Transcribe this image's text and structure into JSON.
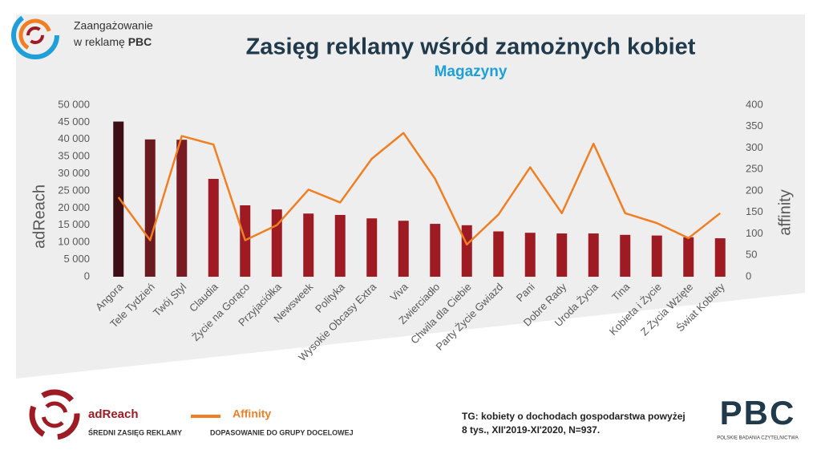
{
  "header": {
    "line1": "Zaangażowanie",
    "line2": "w reklamę ",
    "line2_bold": "PBC"
  },
  "logo": {
    "text": "PBC",
    "caption": "POLSKIE BADANIA CZYTELNICTWA"
  },
  "chart_data": {
    "type": "bar",
    "title": "Zasięg reklamy wśród zamożnych kobiet",
    "subtitle": "Magazyny",
    "ylabel": "adReach",
    "y2label": "affinity",
    "categories": [
      "Angora",
      "Tele Tydzień",
      "Twój Styl",
      "Claudia",
      "Życie na Gorąco",
      "Przyjaciółka",
      "Newsweek",
      "Polityka",
      "Wysokie Obcasy Extra",
      "Viva",
      "Zwierciadło",
      "Chwila dla Ciebie",
      "Party Życie Gwiazd",
      "Pani",
      "Dobre Rady",
      "Uroda Życia",
      "Tina",
      "Kobieta i Życie",
      "Z Życia Wzięte",
      "Świat Kobiety"
    ],
    "series": [
      {
        "name": "adReach",
        "type": "bar",
        "description": "ŚREDNI ZASIĘG REKLAMY",
        "color": "#9e1b24",
        "colors": [
          "#3d0f14",
          "#6b1a20",
          "#7a1a22",
          "#9e1b24",
          "#9e1b24",
          "#9e1b24",
          "#9e1b24",
          "#9e1b24",
          "#9e1b24",
          "#9e1b24",
          "#9e1b24",
          "#9e1b24",
          "#9e1b24",
          "#9e1b24",
          "#9e1b24",
          "#9e1b24",
          "#9e1b24",
          "#9e1b24",
          "#9e1b24",
          "#9e1b24"
        ],
        "values": [
          45200,
          40000,
          39900,
          28500,
          20800,
          19600,
          18400,
          18000,
          17000,
          16300,
          15400,
          15000,
          13200,
          12800,
          12600,
          12600,
          12200,
          12000,
          11500,
          11200
        ]
      },
      {
        "name": "Affinity",
        "type": "line",
        "axis": "y2",
        "description": "DOPASOWANIE  DO GRUPY DOCELOWEJ",
        "color": "#f07f23",
        "values": [
          185,
          85,
          328,
          308,
          85,
          120,
          203,
          173,
          275,
          335,
          228,
          75,
          145,
          255,
          148,
          310,
          148,
          125,
          90,
          148
        ]
      }
    ],
    "ylim": [
      0,
      50000
    ],
    "yticks": [
      0,
      {
        "value": 5000,
        "label": "5 000"
      },
      {
        "value": 10000,
        "label": "10 000"
      },
      {
        "value": 15000,
        "label": "15 000"
      },
      {
        "value": 20000,
        "label": "20 000"
      },
      {
        "value": 25000,
        "label": "25 000"
      },
      {
        "value": 30000,
        "label": "30 000"
      },
      {
        "value": 35000,
        "label": "35 000"
      },
      {
        "value": 40000,
        "label": "40 000"
      },
      {
        "value": 45000,
        "label": "45 000"
      },
      {
        "value": 50000,
        "label": "50 000"
      }
    ],
    "y2lim": [
      0,
      400
    ],
    "y2ticks": [
      0,
      50,
      100,
      150,
      200,
      250,
      300,
      350,
      400
    ],
    "grid": false,
    "note": [
      "TG: kobiety o dochodach gospodarstwa  powyżej",
      "8 tys., XII'2019-XI'2020,  N=937."
    ]
  }
}
